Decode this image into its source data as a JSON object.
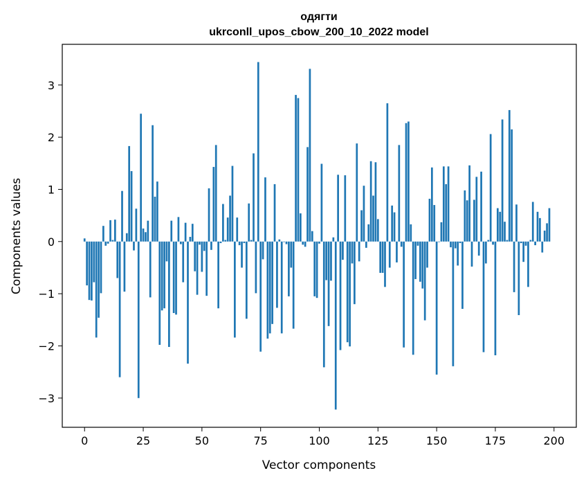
{
  "chart_data": {
    "type": "bar",
    "title_line1": "одягти",
    "title_line2": "ukrconll_upos_cbow_200_10_2022 model",
    "xlabel": "Vector components",
    "ylabel": "Components values",
    "xlim": [
      -9.5,
      209.5
    ],
    "ylim": [
      -3.56,
      3.78
    ],
    "xticks": [
      0,
      25,
      50,
      75,
      100,
      125,
      150,
      175,
      200
    ],
    "xtick_labels": [
      "0",
      "25",
      "50",
      "75",
      "100",
      "125",
      "150",
      "175",
      "200"
    ],
    "yticks": [
      -3,
      -2,
      -1,
      0,
      1,
      2,
      3
    ],
    "ytick_labels": [
      "−3",
      "−2",
      "−1",
      "0",
      "1",
      "2",
      "3"
    ],
    "bar_color": "#1f77b4",
    "grid": false,
    "values": [
      0.06,
      -0.84,
      -1.12,
      -1.13,
      -0.78,
      -1.84,
      -1.46,
      -0.99,
      0.3,
      -0.08,
      -0.04,
      0.41,
      0.03,
      0.42,
      -0.7,
      -2.6,
      0.97,
      -0.96,
      0.16,
      1.83,
      1.35,
      -0.17,
      0.63,
      -3.0,
      2.45,
      0.25,
      0.18,
      0.4,
      -1.07,
      2.23,
      0.86,
      1.15,
      -1.98,
      -1.32,
      -1.28,
      -0.38,
      -2.02,
      0.4,
      -1.37,
      -1.4,
      0.47,
      -0.05,
      -0.78,
      0.36,
      -2.34,
      0.09,
      0.34,
      -0.57,
      -1.02,
      -0.06,
      -0.58,
      -0.18,
      -1.04,
      1.02,
      -0.16,
      1.43,
      1.85,
      -1.28,
      -0.03,
      0.72,
      0.03,
      0.46,
      0.88,
      1.45,
      -1.84,
      0.46,
      -0.07,
      -0.5,
      -0.03,
      -1.48,
      0.73,
      0.03,
      1.69,
      -0.99,
      3.44,
      -2.11,
      -0.34,
      1.23,
      -1.86,
      -1.76,
      -1.58,
      1.1,
      -1.27,
      0.04,
      -1.76,
      -0.01,
      -0.05,
      -1.05,
      -0.5,
      -1.67,
      2.81,
      2.75,
      0.54,
      -0.06,
      -0.1,
      1.81,
      3.31,
      0.2,
      -1.05,
      -1.08,
      -0.04,
      1.49,
      -2.41,
      -0.74,
      -1.62,
      -0.75,
      0.08,
      -3.22,
      1.28,
      -2.08,
      -0.35,
      1.27,
      -1.93,
      -2.01,
      -0.42,
      -1.2,
      1.88,
      -0.38,
      0.6,
      1.07,
      -0.12,
      0.33,
      1.54,
      0.88,
      1.52,
      0.43,
      -0.6,
      -0.6,
      -0.87,
      2.65,
      -0.5,
      0.69,
      0.56,
      -0.4,
      1.85,
      -0.1,
      -2.03,
      2.27,
      2.3,
      0.33,
      -2.17,
      -0.72,
      -0.08,
      -0.77,
      -0.9,
      -1.51,
      -0.5,
      0.82,
      1.42,
      0.7,
      -2.55,
      -0.01,
      0.37,
      1.44,
      1.1,
      1.44,
      -0.11,
      -2.39,
      -0.13,
      -0.46,
      -0.03,
      -1.29,
      0.98,
      0.79,
      1.46,
      -0.48,
      0.8,
      1.24,
      -0.27,
      1.34,
      -2.12,
      -0.42,
      0.03,
      2.06,
      -0.06,
      -2.18,
      0.64,
      0.57,
      2.34,
      0.38,
      0.03,
      2.52,
      2.15,
      -0.97,
      0.71,
      -1.41,
      -0.03,
      -0.39,
      -0.08,
      -0.87,
      0.03,
      0.76,
      -0.07,
      0.57,
      0.45,
      -0.21,
      0.21,
      0.35,
      0.64
    ]
  }
}
